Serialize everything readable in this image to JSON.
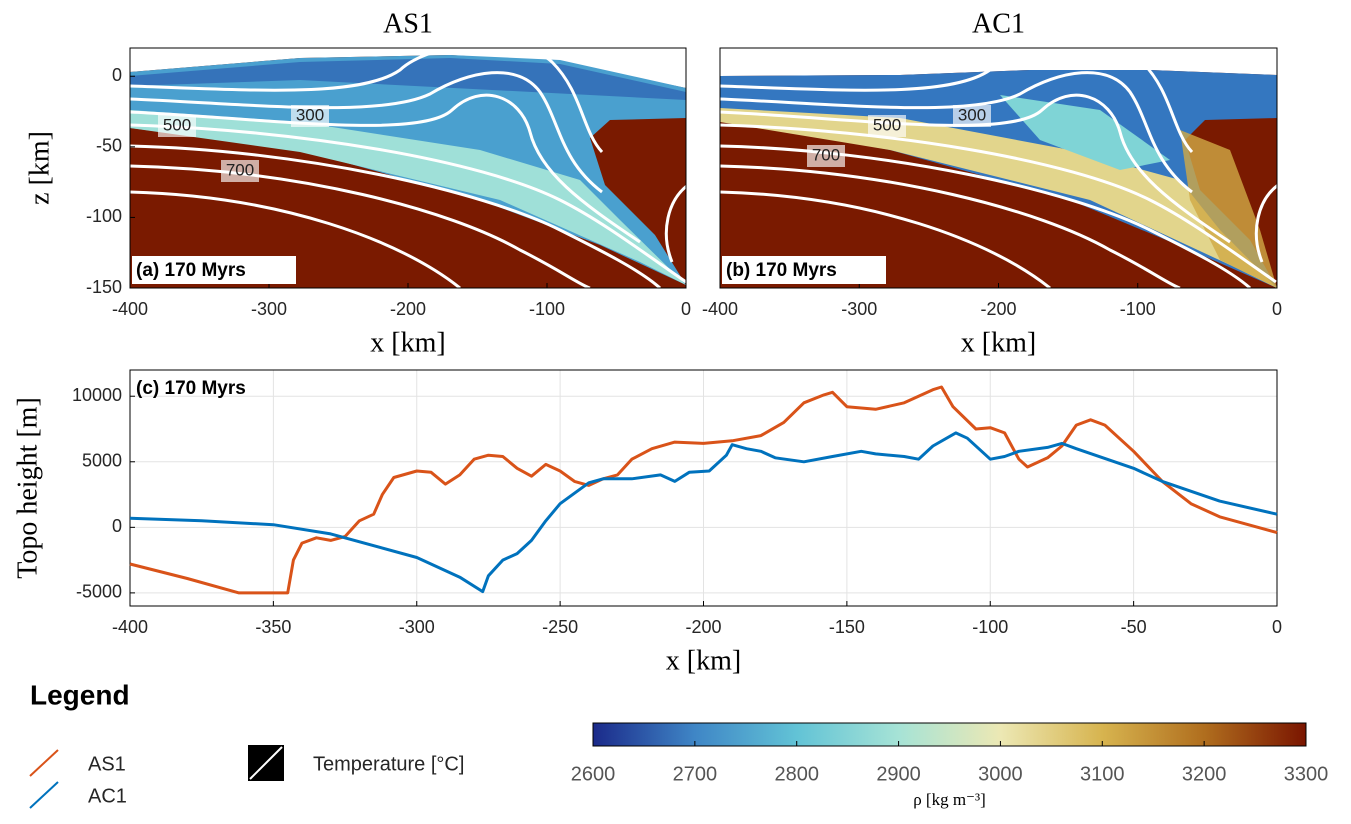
{
  "chart_data": [
    {
      "type": "field",
      "title": "AS1",
      "xlabel": "x [km]",
      "ylabel": "z [km]",
      "annotation": "(a) 170 Myrs",
      "xlim": [
        -400,
        0
      ],
      "ylim": [
        -150,
        20
      ],
      "xticks": [
        -400,
        -300,
        -200,
        -100,
        0
      ],
      "yticks": [
        -150,
        -100,
        -50,
        0
      ],
      "contour_levels": [
        300,
        500,
        700
      ]
    },
    {
      "type": "field",
      "title": "AC1",
      "xlabel": "x [km]",
      "annotation": "(b) 170 Myrs",
      "xlim": [
        -400,
        0
      ],
      "ylim": [
        -150,
        20
      ],
      "xticks": [
        -400,
        -300,
        -200,
        -100,
        0
      ],
      "contour_levels": [
        300,
        500,
        700
      ]
    },
    {
      "type": "line",
      "xlabel": "x [km]",
      "ylabel": "Topo height [m]",
      "annotation": "(c) 170 Myrs",
      "xlim": [
        -400,
        0
      ],
      "ylim": [
        -6000,
        12000
      ],
      "xticks": [
        -400,
        -350,
        -300,
        -250,
        -200,
        -150,
        -100,
        -50,
        0
      ],
      "yticks": [
        -5000,
        0,
        5000,
        10000
      ],
      "grid": true,
      "series": [
        {
          "name": "AS1",
          "color": "#D95319",
          "x": [
            -400,
            -380,
            -362,
            -345,
            -343,
            -340,
            -335,
            -330,
            -325,
            -320,
            -315,
            -312,
            -308,
            -300,
            -295,
            -290,
            -285,
            -280,
            -275,
            -270,
            -265,
            -260,
            -255,
            -250,
            -245,
            -240,
            -235,
            -230,
            -225,
            -218,
            -210,
            -200,
            -190,
            -180,
            -172,
            -165,
            -158,
            -155,
            -150,
            -140,
            -130,
            -120,
            -117,
            -113,
            -105,
            -100,
            -95,
            -90,
            -87,
            -80,
            -75,
            -70,
            -65,
            -60,
            -50,
            -40,
            -30,
            -20,
            -10,
            0
          ],
          "values": [
            -2800,
            -3900,
            -5000,
            -5000,
            -2500,
            -1200,
            -800,
            -1000,
            -700,
            500,
            1000,
            2500,
            3800,
            4300,
            4200,
            3300,
            4000,
            5200,
            5500,
            5400,
            4500,
            3900,
            4800,
            4300,
            3500,
            3200,
            3700,
            4000,
            5200,
            6000,
            6500,
            6400,
            6600,
            7000,
            8000,
            9500,
            10100,
            10300,
            9200,
            9000,
            9500,
            10500,
            10700,
            9200,
            7500,
            7600,
            7200,
            5200,
            4600,
            5300,
            6200,
            7800,
            8200,
            7800,
            5800,
            3500,
            1800,
            800,
            200,
            -400
          ]
        },
        {
          "name": "AC1",
          "color": "#0072BD",
          "x": [
            -400,
            -375,
            -350,
            -330,
            -300,
            -285,
            -277,
            -275,
            -270,
            -265,
            -260,
            -255,
            -250,
            -245,
            -240,
            -235,
            -225,
            -215,
            -210,
            -205,
            -198,
            -192,
            -190,
            -185,
            -180,
            -175,
            -165,
            -155,
            -145,
            -140,
            -130,
            -125,
            -120,
            -112,
            -108,
            -100,
            -95,
            -90,
            -80,
            -75,
            -70,
            -50,
            -40,
            -20,
            0
          ],
          "values": [
            700,
            500,
            200,
            -500,
            -2300,
            -3800,
            -4900,
            -3700,
            -2500,
            -2000,
            -1000,
            500,
            1800,
            2600,
            3400,
            3700,
            3700,
            4000,
            3500,
            4200,
            4300,
            5500,
            6300,
            6000,
            5800,
            5300,
            5000,
            5400,
            5800,
            5600,
            5400,
            5200,
            6200,
            7200,
            6800,
            5200,
            5400,
            5800,
            6100,
            6400,
            6000,
            4500,
            3500,
            2000,
            1000
          ]
        }
      ]
    },
    {
      "type": "colorbar",
      "xlabel": "ρ [kg m⁻³]",
      "xlim": [
        2600,
        3300
      ],
      "xticks": [
        2600,
        2700,
        2800,
        2900,
        3000,
        3100,
        3200,
        3300
      ],
      "colors": [
        "#1b2a8a",
        "#3f86c6",
        "#62c3d6",
        "#a6e3d6",
        "#ece8b4",
        "#d7b44f",
        "#b06e1e",
        "#7a1500"
      ]
    }
  ],
  "legend": {
    "title": "Legend",
    "contour_label": "Temperature [°C]"
  }
}
